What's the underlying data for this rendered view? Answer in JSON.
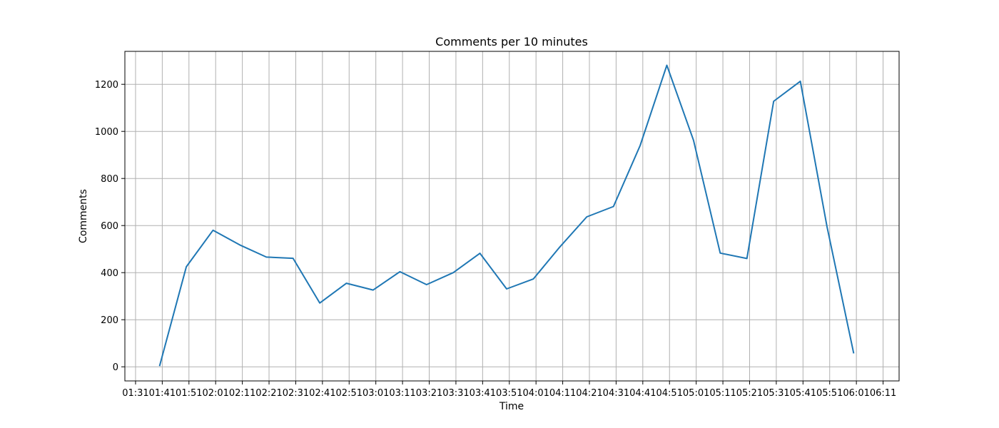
{
  "chart_data": {
    "type": "line",
    "title": "Comments per 10 minutes",
    "xlabel": "Time",
    "ylabel": "Comments",
    "grid": true,
    "line_color": "#1f77b4",
    "xlim_minutes": [
      87,
      377
    ],
    "ylim": [
      -60,
      1340
    ],
    "x_ticks": [
      {
        "label": "01:31",
        "minutes": 91
      },
      {
        "label": "01:41",
        "minutes": 101
      },
      {
        "label": "01:51",
        "minutes": 111
      },
      {
        "label": "02:01",
        "minutes": 121
      },
      {
        "label": "02:11",
        "minutes": 131
      },
      {
        "label": "02:21",
        "minutes": 141
      },
      {
        "label": "02:31",
        "minutes": 151
      },
      {
        "label": "02:41",
        "minutes": 161
      },
      {
        "label": "02:51",
        "minutes": 171
      },
      {
        "label": "03:01",
        "minutes": 181
      },
      {
        "label": "03:11",
        "minutes": 191
      },
      {
        "label": "03:21",
        "minutes": 201
      },
      {
        "label": "03:31",
        "minutes": 211
      },
      {
        "label": "03:41",
        "minutes": 221
      },
      {
        "label": "03:51",
        "minutes": 231
      },
      {
        "label": "04:01",
        "minutes": 241
      },
      {
        "label": "04:11",
        "minutes": 251
      },
      {
        "label": "04:21",
        "minutes": 261
      },
      {
        "label": "04:31",
        "minutes": 271
      },
      {
        "label": "04:41",
        "minutes": 281
      },
      {
        "label": "04:51",
        "minutes": 291
      },
      {
        "label": "05:01",
        "minutes": 301
      },
      {
        "label": "05:11",
        "minutes": 311
      },
      {
        "label": "05:21",
        "minutes": 321
      },
      {
        "label": "05:31",
        "minutes": 331
      },
      {
        "label": "05:41",
        "minutes": 341
      },
      {
        "label": "05:51",
        "minutes": 351
      },
      {
        "label": "06:01",
        "minutes": 361
      },
      {
        "label": "06:11",
        "minutes": 371
      }
    ],
    "y_ticks": [
      0,
      200,
      400,
      600,
      800,
      1000,
      1200
    ],
    "series": [
      {
        "name": "Comments",
        "x_minutes": [
          100,
          110,
          120,
          130,
          140,
          150,
          160,
          170,
          180,
          190,
          200,
          210,
          220,
          230,
          240,
          250,
          260,
          270,
          280,
          290,
          300,
          310,
          320,
          330,
          340,
          350,
          360
        ],
        "values": [
          3,
          425,
          580,
          518,
          466,
          461,
          271,
          355,
          326,
          404,
          349,
          400,
          482,
          331,
          373,
          510,
          637,
          681,
          940,
          1281,
          962,
          483,
          460,
          1128,
          1213,
          595,
          57
        ]
      }
    ]
  }
}
